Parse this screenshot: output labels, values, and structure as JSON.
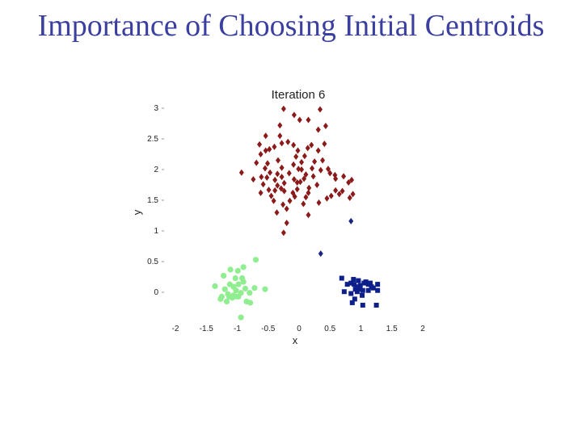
{
  "slide": {
    "title": "Importance of Choosing Initial Centroids"
  },
  "chart_data": {
    "type": "scatter",
    "title": "Iteration 6",
    "xlabel": "x",
    "ylabel": "y",
    "xlim": [
      -2,
      2
    ],
    "ylim": [
      -0.2,
      3
    ],
    "x_ticks": [
      "-2",
      "-1.5",
      "-1",
      "-0.5",
      "0",
      "0.5",
      "1",
      "1.5",
      "2"
    ],
    "y_ticks": [
      "0",
      "0.5",
      "1",
      "1.5",
      "2",
      "2.5",
      "3"
    ],
    "grid": false,
    "series": [
      {
        "marker": "diamond",
        "color": "#8b1a1a",
        "points": [
          [
            -0.28,
            2.03
          ],
          [
            -0.35,
            1.93
          ],
          [
            -0.39,
            1.83
          ],
          [
            -0.49,
            1.67
          ],
          [
            -0.24,
            1.78
          ],
          [
            -0.29,
            1.69
          ],
          [
            -0.08,
            1.84
          ],
          [
            -0.03,
            1.79
          ],
          [
            -0.34,
            2.15
          ],
          [
            -0.4,
            2.37
          ],
          [
            -0.18,
            2.45
          ],
          [
            -0.31,
            2.55
          ],
          [
            -0.48,
            2.33
          ],
          [
            -0.62,
            2.25
          ],
          [
            -0.69,
            2.11
          ],
          [
            -0.74,
            1.84
          ],
          [
            -0.26,
            1.43
          ],
          [
            -0.24,
            1.65
          ],
          [
            -0.15,
            1.49
          ],
          [
            -0.2,
            1.36
          ],
          [
            -0.1,
            1.62
          ],
          [
            -0.03,
            1.68
          ],
          [
            0.02,
            1.8
          ],
          [
            0.08,
            1.85
          ],
          [
            0.11,
            1.92
          ],
          [
            -0.01,
            2.01
          ],
          [
            -0.05,
            2.21
          ],
          [
            0.09,
            2.22
          ],
          [
            0.14,
            2.35
          ],
          [
            0.2,
            2.4
          ],
          [
            0.31,
            2.31
          ],
          [
            0.41,
            2.42
          ],
          [
            0.25,
            2.13
          ],
          [
            0.38,
            2.15
          ],
          [
            0.35,
            1.99
          ],
          [
            0.29,
            1.75
          ],
          [
            0.16,
            1.7
          ],
          [
            0.15,
            1.62
          ],
          [
            0.11,
            1.55
          ],
          [
            0.07,
            1.44
          ],
          [
            0.32,
            1.46
          ],
          [
            0.45,
            1.53
          ],
          [
            0.52,
            1.57
          ],
          [
            0.59,
            1.66
          ],
          [
            0.59,
            1.85
          ],
          [
            0.5,
            1.94
          ],
          [
            0.47,
            2.01
          ],
          [
            0.58,
            1.91
          ],
          [
            0.72,
            1.89
          ],
          [
            0.7,
            1.65
          ],
          [
            0.65,
            1.6
          ],
          [
            0.8,
            1.79
          ],
          [
            0.85,
            1.83
          ],
          [
            0.87,
            1.6
          ],
          [
            0.82,
            1.54
          ],
          [
            -0.51,
            2.1
          ],
          [
            -0.54,
            2.31
          ],
          [
            -0.64,
            2.41
          ],
          [
            -0.54,
            2.55
          ],
          [
            -0.31,
            2.72
          ],
          [
            -0.28,
            2.43
          ],
          [
            -0.09,
            2.4
          ],
          [
            -0.02,
            2.31
          ],
          [
            -0.08,
            2.89
          ],
          [
            0.01,
            2.81
          ],
          [
            0.15,
            2.81
          ],
          [
            0.31,
            2.65
          ],
          [
            0.43,
            2.71
          ],
          [
            -0.25,
            2.99
          ],
          [
            0.34,
            2.98
          ],
          [
            -0.41,
            1.49
          ],
          [
            -0.52,
            1.87
          ],
          [
            -0.61,
            1.88
          ],
          [
            -0.58,
            1.76
          ],
          [
            -0.62,
            1.62
          ],
          [
            -0.39,
            1.66
          ],
          [
            -0.35,
            1.74
          ],
          [
            -0.28,
            1.88
          ],
          [
            -0.47,
            1.95
          ],
          [
            -0.16,
            1.94
          ],
          [
            0.04,
            2.0
          ],
          [
            -0.09,
            2.08
          ],
          [
            0.21,
            2.02
          ],
          [
            0.04,
            2.12
          ],
          [
            0.23,
            1.89
          ],
          [
            -0.55,
            2.02
          ],
          [
            -0.45,
            1.57
          ],
          [
            -0.07,
            1.56
          ],
          [
            -0.36,
            1.3
          ],
          [
            0.15,
            1.26
          ],
          [
            -0.2,
            1.13
          ],
          [
            -0.93,
            1.95
          ],
          [
            -0.25,
            0.97
          ]
        ]
      },
      {
        "marker": "diamond",
        "color": "#1a237e",
        "points": [
          [
            0.84,
            1.16
          ],
          [
            0.35,
            0.63
          ]
        ]
      },
      {
        "marker": "square",
        "color": "#0d1f8a",
        "points": [
          [
            0.69,
            0.23
          ],
          [
            0.78,
            0.13
          ],
          [
            0.84,
            0.15
          ],
          [
            0.88,
            0.21
          ],
          [
            0.91,
            0.05
          ],
          [
            0.94,
            0.01
          ],
          [
            0.96,
            0.19
          ],
          [
            0.99,
            0.11
          ],
          [
            1.03,
            0.03
          ],
          [
            1.05,
            0.15
          ],
          [
            1.08,
            0.17
          ],
          [
            1.12,
            0.13
          ],
          [
            1.15,
            0.15
          ],
          [
            1.2,
            0.07
          ],
          [
            1.27,
            0.13
          ],
          [
            0.98,
            0.05
          ],
          [
            0.84,
            -0.02
          ],
          [
            0.9,
            -0.11
          ],
          [
            1.02,
            -0.05
          ],
          [
            1.27,
            0.03
          ],
          [
            1.25,
            -0.21
          ],
          [
            1.03,
            -0.21
          ],
          [
            0.86,
            -0.17
          ],
          [
            0.73,
            0.01
          ],
          [
            1.17,
            0.09
          ],
          [
            0.94,
            0.09
          ],
          [
            0.89,
            0.13
          ],
          [
            1.12,
            0.03
          ]
        ]
      },
      {
        "marker": "circle",
        "color": "#90ee90",
        "points": [
          [
            -0.98,
            0.13
          ],
          [
            -1.06,
            0.09
          ],
          [
            -1.12,
            0.13
          ],
          [
            -1.2,
            0.05
          ],
          [
            -1.15,
            -0.03
          ],
          [
            -1.08,
            -0.09
          ],
          [
            -1.01,
            -0.07
          ],
          [
            -0.94,
            -0.01
          ],
          [
            -0.87,
            0.06
          ],
          [
            -0.92,
            0.23
          ],
          [
            -1.03,
            0.23
          ],
          [
            -0.99,
            0.35
          ],
          [
            -0.9,
            0.41
          ],
          [
            -1.11,
            0.37
          ],
          [
            -1.22,
            0.27
          ],
          [
            -1.36,
            0.1
          ],
          [
            -1.25,
            -0.07
          ],
          [
            -1.27,
            -0.11
          ],
          [
            -1.17,
            -0.15
          ],
          [
            -0.85,
            -0.15
          ],
          [
            -0.79,
            -0.17
          ],
          [
            -0.8,
            -0.01
          ],
          [
            -0.72,
            0.07
          ],
          [
            -0.55,
            0.05
          ],
          [
            -0.7,
            0.53
          ],
          [
            -1.02,
            0.03
          ],
          [
            -1.13,
            -0.07
          ],
          [
            -0.94,
            -0.41
          ],
          [
            -0.98,
            -0.07
          ],
          [
            -0.9,
            0.17
          ],
          [
            -1.06,
            -0.05
          ]
        ]
      }
    ]
  }
}
